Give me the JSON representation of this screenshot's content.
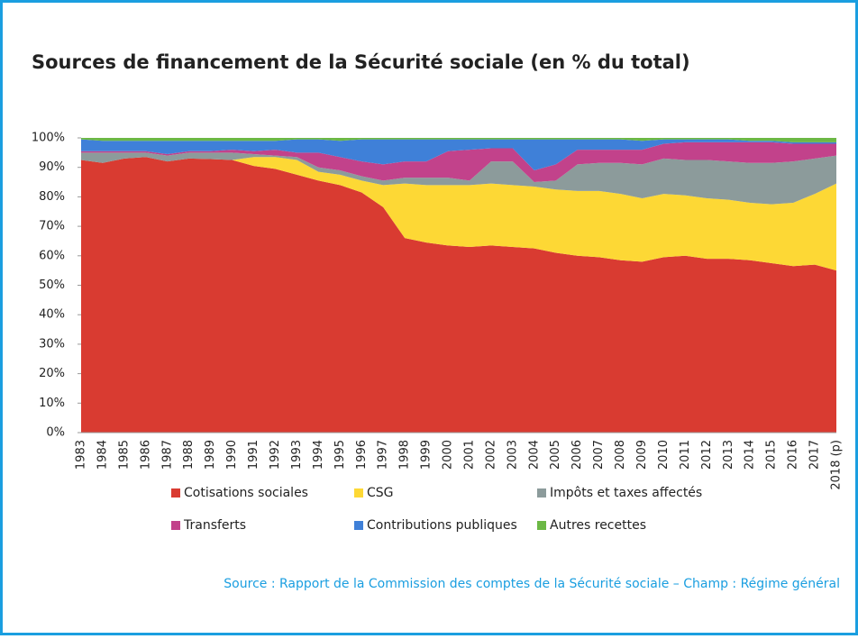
{
  "chart_data": {
    "type": "stacked-area",
    "title": "Sources de financement de la Sécurité sociale (en % du total)",
    "source": "Source : Rapport de la Commission des comptes de la Sécurité sociale – Champ : Régime général",
    "categories": [
      "1983",
      "1984",
      "1985",
      "1986",
      "1987",
      "1988",
      "1989",
      "1990",
      "1991",
      "1992",
      "1993",
      "1994",
      "1995",
      "1996",
      "1997",
      "1998",
      "1999",
      "2000",
      "2001",
      "2002",
      "2003",
      "2004",
      "2005",
      "2006",
      "2007",
      "2008",
      "2009",
      "2010",
      "2011",
      "2012",
      "2013",
      "2014",
      "2015",
      "2016",
      "2017",
      "2018 (p)"
    ],
    "series": [
      {
        "name": "Cotisations sociales",
        "color": "#d93b31",
        "values": [
          92.5,
          91.5,
          93,
          93.5,
          92,
          93,
          92.8,
          92.5,
          90.5,
          89.5,
          87.5,
          85.5,
          84,
          81.5,
          76.5,
          66,
          64.5,
          63.5,
          63,
          63.5,
          63,
          62.5,
          61,
          60,
          59.5,
          58.5,
          58,
          59.5,
          60,
          59,
          59,
          58.5,
          57.5,
          56.5,
          57,
          55
        ]
      },
      {
        "name": "CSG",
        "color": "#fdd835",
        "values": [
          0,
          0,
          0,
          0,
          0,
          0,
          0,
          0,
          3,
          4,
          5,
          3,
          3.5,
          4,
          7.5,
          18.5,
          19.5,
          20.5,
          21,
          21,
          21,
          21,
          21.5,
          22,
          22.5,
          22.5,
          21.5,
          21.5,
          20.5,
          20.5,
          20,
          19.5,
          20,
          21.5,
          24,
          29.5
        ]
      },
      {
        "name": "Impôts et taxes affectés",
        "color": "#8c9b9b",
        "values": [
          2.5,
          3.5,
          2,
          1.5,
          2,
          2,
          2.2,
          2.5,
          1,
          0.5,
          1,
          1.5,
          1.5,
          1.5,
          1.5,
          2,
          2.5,
          2.5,
          1.5,
          7.5,
          8,
          1.5,
          3,
          9,
          9.5,
          10.5,
          11.5,
          12,
          12,
          13,
          13,
          13.5,
          14,
          14,
          12,
          9.5
        ]
      },
      {
        "name": "Transferts",
        "color": "#c2428b",
        "values": [
          0.5,
          0.5,
          0.5,
          0.5,
          0.5,
          0.5,
          0.5,
          1,
          1,
          2,
          1.5,
          5,
          4.5,
          5,
          5.5,
          5.5,
          5.5,
          9,
          10.5,
          4.5,
          4.5,
          4,
          5.5,
          5,
          4.5,
          4.5,
          5,
          5,
          6,
          6,
          6.5,
          7,
          7,
          6,
          5,
          4
        ]
      },
      {
        "name": "Contributions publiques",
        "color": "#3f80d8",
        "values": [
          4,
          3.5,
          3.5,
          3.5,
          4.5,
          3.5,
          3.5,
          3,
          3.5,
          3,
          4.5,
          4.5,
          5.5,
          7.5,
          8.5,
          7.5,
          7.5,
          4,
          3.5,
          3,
          3,
          10.5,
          8.5,
          3.5,
          3.5,
          3.5,
          3,
          1.5,
          1,
          1,
          1,
          0.5,
          0.5,
          0.5,
          0.5,
          0.5
        ]
      },
      {
        "name": "Autres recettes",
        "color": "#6cb845",
        "values": [
          0.5,
          1,
          1,
          1,
          1,
          1,
          1,
          1,
          1,
          1,
          0.5,
          0.5,
          1,
          0.5,
          0.5,
          0.5,
          0.5,
          0.5,
          0.5,
          0.5,
          0.5,
          0.5,
          0.5,
          0.5,
          0.5,
          0.5,
          1,
          0.5,
          0.5,
          0.5,
          0.5,
          1,
          1,
          1.5,
          1.5,
          1.5
        ]
      }
    ],
    "ylim": [
      0,
      100
    ],
    "yticks": [
      {
        "value": 0,
        "label": "0%"
      },
      {
        "value": 10,
        "label": "10%"
      },
      {
        "value": 20,
        "label": "20%"
      },
      {
        "value": 30,
        "label": "30%"
      },
      {
        "value": 40,
        "label": "40%"
      },
      {
        "value": 50,
        "label": "50%"
      },
      {
        "value": 60,
        "label": "60%"
      },
      {
        "value": 70,
        "label": "70%"
      },
      {
        "value": 80,
        "label": "80%"
      },
      {
        "value": 90,
        "label": "90%"
      },
      {
        "value": 100,
        "label": "100%"
      }
    ]
  }
}
